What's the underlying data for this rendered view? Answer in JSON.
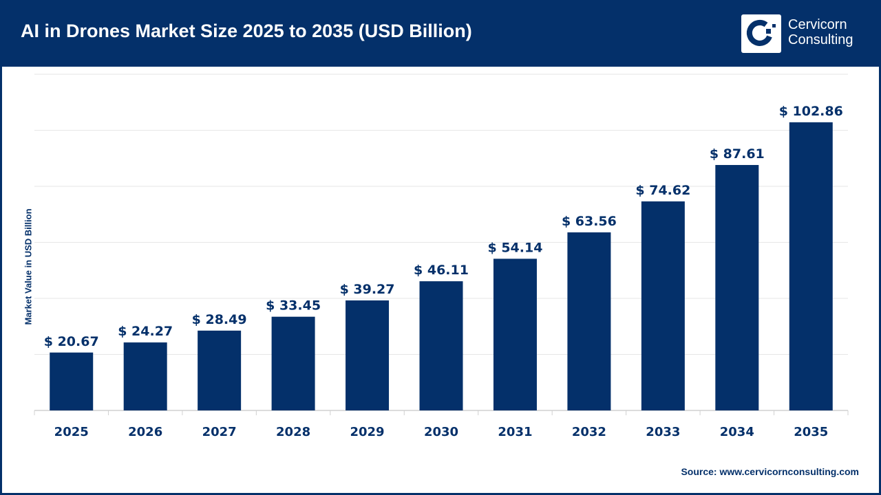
{
  "header": {
    "title": "AI in Drones Market Size 2025 to 2035 (USD Billion)",
    "logo_text_line1": "Cervicorn",
    "logo_text_line2": "Consulting"
  },
  "source": "Source: www.cervicornconsulting.com",
  "colors": {
    "brand": "#04306a",
    "bar": "#04306a",
    "grid": "#e6e6e6"
  },
  "chart_data": {
    "type": "bar",
    "title": "AI in Drones Market Size 2025 to 2035 (USD Billion)",
    "xlabel": "",
    "ylabel": "Market Value in USD Billion",
    "categories": [
      "2025",
      "2026",
      "2027",
      "2028",
      "2029",
      "2030",
      "2031",
      "2032",
      "2033",
      "2034",
      "2035"
    ],
    "values": [
      20.67,
      24.27,
      28.49,
      33.45,
      39.27,
      46.11,
      54.14,
      63.56,
      74.62,
      87.61,
      102.86
    ],
    "data_labels": [
      "$ 20.67",
      "$ 24.27",
      "$ 28.49",
      "$ 33.45",
      "$ 39.27",
      "$ 46.11",
      "$ 54.14",
      "$ 63.56",
      "$ 74.62",
      "$ 87.61",
      "$ 102.86"
    ],
    "ylim": [
      0,
      120
    ],
    "grid": true,
    "y_tick_labels_shown": false
  }
}
